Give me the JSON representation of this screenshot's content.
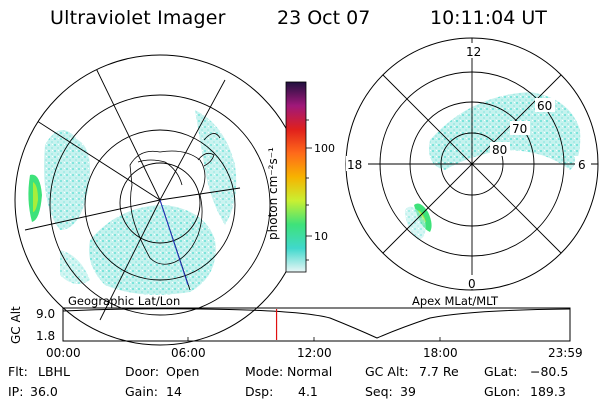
{
  "header": {
    "title": "Ultraviolet Imager",
    "date": "23 Oct 07",
    "time": "10:11:04 UT"
  },
  "left_panel": {
    "caption": "Geographic Lat/Lon"
  },
  "right_panel": {
    "caption": "Apex MLat/MLT",
    "mlt_labels": [
      "12",
      "18",
      "6",
      "0"
    ],
    "mlat_labels": [
      "60",
      "70",
      "80"
    ]
  },
  "colorbar": {
    "label": "photon cm⁻²s⁻¹",
    "ticks": [
      "100",
      "10"
    ],
    "scale": "log",
    "colors": [
      "#e9f6f6",
      "#40d8cc",
      "#3ee27a",
      "#c9f032",
      "#f7b300",
      "#ff6a1a",
      "#e0201c",
      "#a0187a",
      "#20103e"
    ]
  },
  "altitude_plot": {
    "ylabel": "GC Alt",
    "y_ticks": [
      "9.0",
      "1.8"
    ],
    "x_ticks": [
      "00:00",
      "06:00",
      "12:00",
      "18:00",
      "23:59"
    ],
    "current_time_marker_hours": 10.19,
    "marker_color": "#e01010"
  },
  "status": {
    "row1": [
      {
        "label": "Flt:",
        "value": "LBHL"
      },
      {
        "label": "Door:",
        "value": "Open"
      },
      {
        "label": "Mode:",
        "value": "Normal"
      },
      {
        "label": "GC Alt:",
        "value": "7.7 Re"
      },
      {
        "label": "GLat:",
        "value": "−80.5"
      }
    ],
    "row2": [
      {
        "label": "IP:",
        "value": "36.0"
      },
      {
        "label": "Gain:",
        "value": "14"
      },
      {
        "label": "Dsp:",
        "value": "4.1"
      },
      {
        "label": "Seq:",
        "value": "39"
      },
      {
        "label": "GLon:",
        "value": "189.3"
      }
    ]
  }
}
